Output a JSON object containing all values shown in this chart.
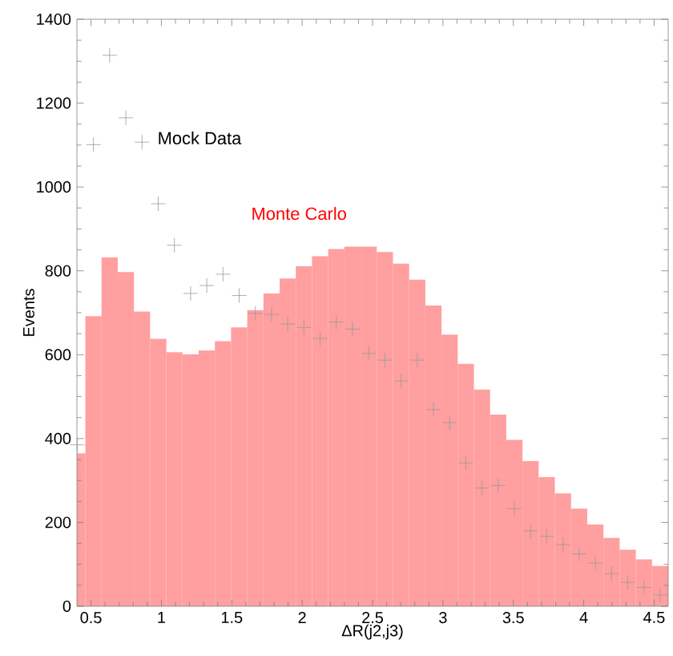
{
  "chart_data": {
    "type": "histogram",
    "xlabel": "ΔR(j2,j3)",
    "ylabel": "Events",
    "legend": false,
    "bins": [
      0.4,
      0.46,
      0.575,
      0.69,
      0.805,
      0.92,
      1.035,
      1.15,
      1.265,
      1.38,
      1.495,
      1.61,
      1.725,
      1.84,
      1.955,
      2.07,
      2.185,
      2.3,
      2.415,
      2.53,
      2.645,
      2.76,
      2.875,
      2.99,
      3.105,
      3.22,
      3.335,
      3.45,
      3.565,
      3.68,
      3.795,
      3.91,
      4.025,
      4.14,
      4.255,
      4.37,
      4.485,
      4.6
    ],
    "series": [
      {
        "name": "Monte Carlo",
        "color": "#ff9f9f",
        "values": [
          365,
          692,
          832,
          797,
          703,
          638,
          606,
          601,
          610,
          632,
          665,
          706,
          746,
          782,
          811,
          835,
          852,
          858,
          858,
          845,
          817,
          779,
          717,
          648,
          578,
          517,
          457,
          397,
          346,
          308,
          269,
          233,
          195,
          163,
          135,
          112,
          96
        ]
      },
      {
        "type": "scatter",
        "name": "Mock Data",
        "color": "#999999",
        "marker": "cross",
        "x": [
          0.4025,
          0.5175,
          0.6325,
          0.7475,
          0.8625,
          0.9775,
          1.0925,
          1.2075,
          1.3225,
          1.4375,
          1.5525,
          1.6675,
          1.7825,
          1.8975,
          2.0125,
          2.1275,
          2.2425,
          2.3575,
          2.4725,
          2.5875,
          2.7025,
          2.8175,
          2.9325,
          3.0475,
          3.1625,
          3.2775,
          3.3925,
          3.5075,
          3.6225,
          3.7375,
          3.8525,
          3.9675,
          4.0825,
          4.1975,
          4.3125,
          4.4275,
          4.5425
        ],
        "values": [
          385,
          1101,
          1314,
          1165,
          1107,
          960,
          861,
          746,
          765,
          792,
          741,
          699,
          696,
          673,
          665,
          639,
          678,
          661,
          603,
          587,
          537,
          587,
          469,
          438,
          342,
          282,
          288,
          233,
          180,
          167,
          147,
          125,
          103,
          78,
          57,
          45,
          27
        ]
      }
    ],
    "xlim": [
      0.4,
      4.6
    ],
    "ylim": [
      0,
      1400
    ],
    "xticks": [
      0.5,
      1,
      1.5,
      2,
      2.5,
      3,
      3.5,
      4,
      4.5
    ],
    "yticks": [
      0,
      200,
      400,
      600,
      800,
      1000,
      1200,
      1400
    ]
  }
}
